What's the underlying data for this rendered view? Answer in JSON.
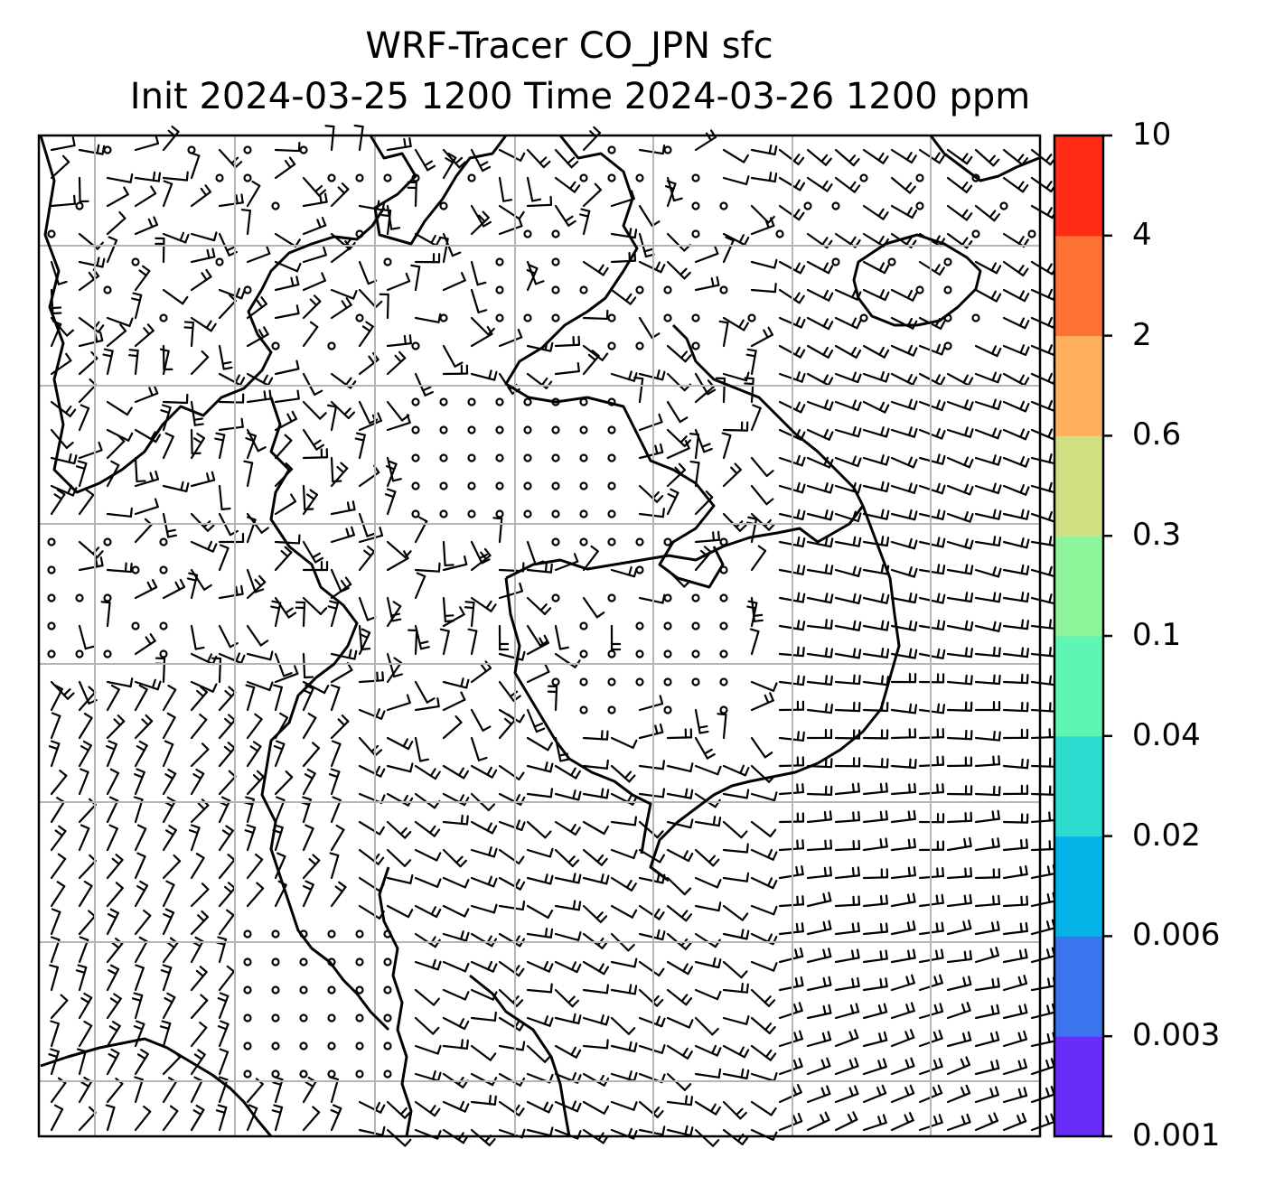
{
  "title": {
    "line1": "WRF-Tracer CO_JPN sfc",
    "line2": "Init 2024-03-25 1200 Time 2024-03-26 1200 ppm"
  },
  "colorbar": {
    "levels": [
      "0.001",
      "0.003",
      "0.006",
      "0.02",
      "0.04",
      "0.1",
      "0.3",
      "0.6",
      "2",
      "4",
      "10"
    ],
    "colors": [
      "#6a2cf8",
      "#3a75ee",
      "#05b3e9",
      "#2bdccf",
      "#5ff5b5",
      "#8ef59a",
      "#d0e183",
      "#ffb05f",
      "#ff7236",
      "#ff2b14"
    ]
  },
  "map": {
    "gridlines": true,
    "coastlines": true,
    "wind_barbs": true,
    "tracer_field_shaded": false
  }
}
